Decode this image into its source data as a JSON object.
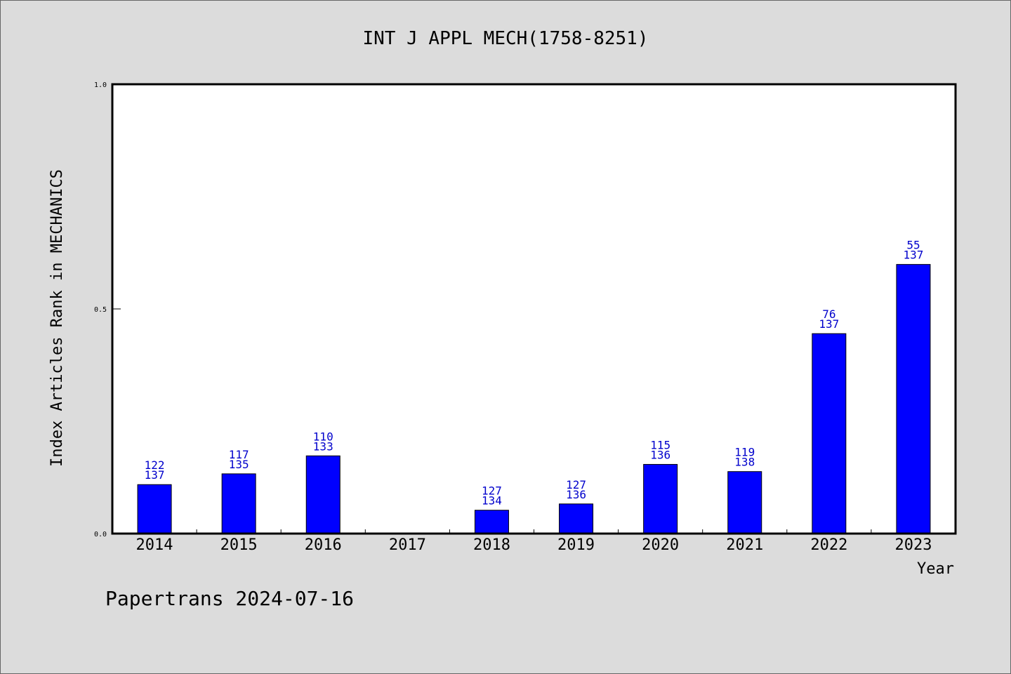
{
  "chart_data": {
    "type": "bar",
    "title": "INT J APPL MECH(1758-8251)",
    "xlabel": "Year",
    "ylabel": "Index Articles Rank in MECHANICS",
    "ylim": [
      0.0,
      1.0
    ],
    "yticks": [
      "0.0",
      "0.5",
      "1.0"
    ],
    "yticks_values": [
      0.0,
      0.5,
      1.0
    ],
    "categories": [
      "2014",
      "2015",
      "2016",
      "2017",
      "2018",
      "2019",
      "2020",
      "2021",
      "2022",
      "2023"
    ],
    "values": [
      0.109,
      0.133,
      0.173,
      0.0,
      0.052,
      0.066,
      0.154,
      0.138,
      0.445,
      0.599
    ],
    "labels_top": [
      "122",
      "117",
      "110",
      "",
      "127",
      "127",
      "115",
      "119",
      "76",
      "55"
    ],
    "labels_bottom": [
      "137",
      "135",
      "133",
      "",
      "134",
      "136",
      "136",
      "138",
      "137",
      "137"
    ],
    "bar_color": "#0000ff",
    "label_color": "#0000cc",
    "grid": false
  },
  "footer": {
    "text": "Papertrans 2024-07-16"
  },
  "colors": {
    "background": "#dcdcdc",
    "plot_background": "#ffffff"
  }
}
